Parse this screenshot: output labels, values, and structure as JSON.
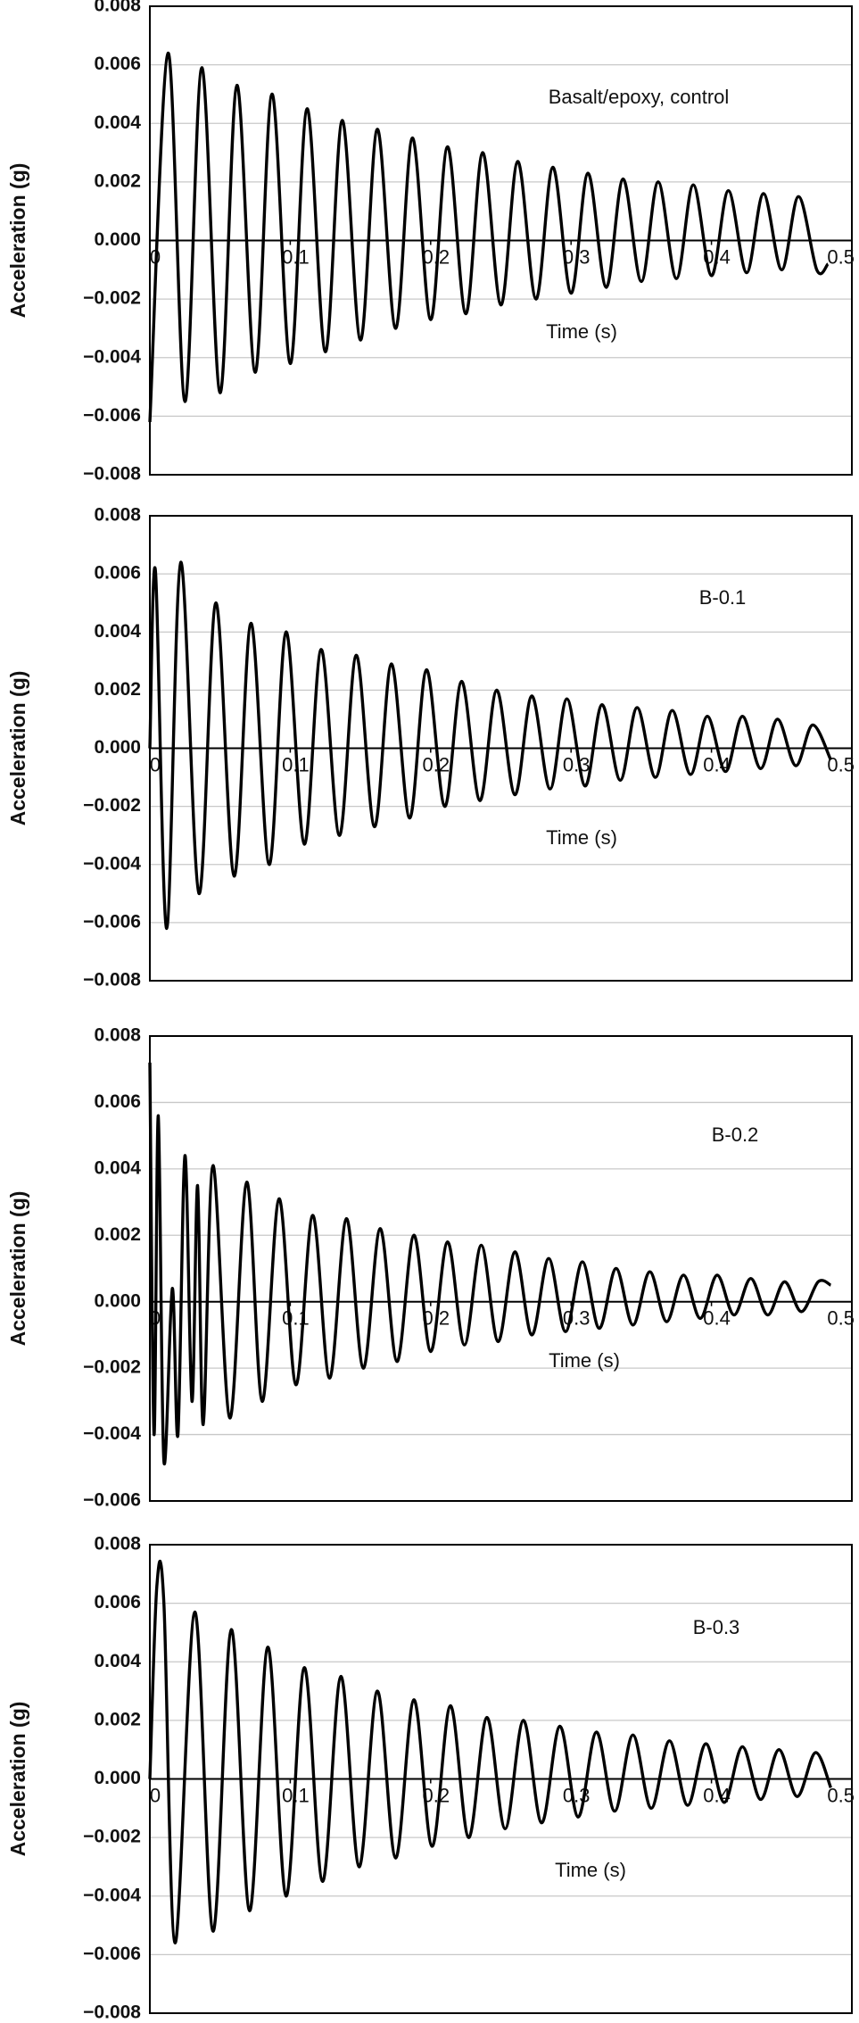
{
  "chart_data": [
    {
      "type": "line",
      "annotation": "Basalt/epoxy, control",
      "x_label": "Time (s)",
      "y_label": "Acceleration (g)",
      "color": "#000000",
      "grid": true,
      "xlim": [
        0,
        0.5
      ],
      "ylim": [
        -0.008,
        0.008
      ],
      "xticks": [
        0,
        0.1,
        0.2,
        0.3,
        0.4,
        0.5
      ],
      "yticks": [
        {
          "value": -0.008,
          "label": "−0.008"
        },
        {
          "value": -0.006,
          "label": "−0.006"
        },
        {
          "value": -0.004,
          "label": "−0.004"
        },
        {
          "value": -0.002,
          "label": "−0.002"
        },
        {
          "value": 0,
          "label": "0.000"
        },
        0.002,
        0.004,
        0.006,
        0.008
      ],
      "x": [
        0,
        0.013,
        0.025,
        0.037,
        0.05,
        0.062,
        0.075,
        0.087,
        0.1,
        0.112,
        0.125,
        0.137,
        0.15,
        0.162,
        0.175,
        0.187,
        0.2,
        0.212,
        0.225,
        0.237,
        0.25,
        0.262,
        0.275,
        0.287,
        0.3,
        0.312,
        0.325,
        0.337,
        0.35,
        0.362,
        0.375,
        0.387,
        0.4,
        0.412,
        0.425,
        0.437,
        0.45,
        0.462,
        0.475,
        0.483
      ],
      "values": [
        -0.0062,
        0.0064,
        -0.0055,
        0.0059,
        -0.0052,
        0.0053,
        -0.0045,
        0.005,
        -0.0042,
        0.0045,
        -0.0038,
        0.0041,
        -0.0034,
        0.0038,
        -0.003,
        0.0035,
        -0.0027,
        0.0032,
        -0.0025,
        0.003,
        -0.0022,
        0.0027,
        -0.002,
        0.0025,
        -0.0018,
        0.0023,
        -0.0016,
        0.0021,
        -0.0014,
        0.002,
        -0.0013,
        0.0019,
        -0.0012,
        0.0017,
        -0.0011,
        0.0016,
        -0.001,
        0.0015,
        -0.001,
        -0.0008
      ]
    },
    {
      "type": "line",
      "annotation": "B-0.1",
      "x_label": "Time (s)",
      "y_label": "Acceleration (g)",
      "color": "#000000",
      "grid": true,
      "xlim": [
        0,
        0.5
      ],
      "ylim": [
        -0.008,
        0.008
      ],
      "xticks": [
        0,
        0.1,
        0.2,
        0.3,
        0.4,
        0.5
      ],
      "yticks": [
        {
          "value": -0.008,
          "label": "−0.008"
        },
        {
          "value": -0.006,
          "label": "−0.006"
        },
        {
          "value": -0.004,
          "label": "−0.004"
        },
        {
          "value": -0.002,
          "label": "−0.002"
        },
        {
          "value": 0,
          "label": "0.000"
        },
        0.002,
        0.004,
        0.006,
        0.008
      ],
      "x": [
        0,
        0.004,
        0.012,
        0.022,
        0.035,
        0.047,
        0.06,
        0.072,
        0.085,
        0.097,
        0.11,
        0.122,
        0.135,
        0.147,
        0.16,
        0.172,
        0.185,
        0.197,
        0.21,
        0.222,
        0.235,
        0.247,
        0.26,
        0.272,
        0.285,
        0.297,
        0.31,
        0.322,
        0.335,
        0.347,
        0.36,
        0.372,
        0.385,
        0.397,
        0.41,
        0.422,
        0.435,
        0.447,
        0.46,
        0.472,
        0.485
      ],
      "values": [
        0,
        0.0061,
        -0.0062,
        0.0064,
        -0.005,
        0.005,
        -0.0044,
        0.0043,
        -0.004,
        0.004,
        -0.0033,
        0.0034,
        -0.003,
        0.0032,
        -0.0027,
        0.0029,
        -0.0024,
        0.0027,
        -0.002,
        0.0023,
        -0.0018,
        0.002,
        -0.0016,
        0.0018,
        -0.0014,
        0.0017,
        -0.0013,
        0.0015,
        -0.0011,
        0.0014,
        -0.001,
        0.0013,
        -0.0009,
        0.0011,
        -0.0008,
        0.0011,
        -0.0007,
        0.001,
        -0.0006,
        0.0008,
        -0.0004
      ]
    },
    {
      "type": "line",
      "annotation": "B-0.2",
      "x_label": "Time (s)",
      "y_label": "Acceleration (g)",
      "color": "#000000",
      "grid": true,
      "xlim": [
        0,
        0.5
      ],
      "ylim": [
        -0.006,
        0.008
      ],
      "xticks": [
        0,
        0.1,
        0.2,
        0.3,
        0.4,
        0.5
      ],
      "yticks": [
        {
          "value": -0.006,
          "label": "−0.006"
        },
        {
          "value": -0.004,
          "label": "−0.004"
        },
        {
          "value": -0.002,
          "label": "−0.002"
        },
        {
          "value": 0,
          "label": "0.000"
        },
        0.002,
        0.004,
        0.006,
        0.008
      ],
      "x": [
        0,
        0.003,
        0.006,
        0.01,
        0.016,
        0.02,
        0.025,
        0.03,
        0.034,
        0.038,
        0.045,
        0.057,
        0.069,
        0.08,
        0.092,
        0.104,
        0.116,
        0.128,
        0.14,
        0.152,
        0.164,
        0.176,
        0.188,
        0.2,
        0.212,
        0.224,
        0.236,
        0.248,
        0.26,
        0.272,
        0.284,
        0.296,
        0.308,
        0.32,
        0.332,
        0.344,
        0.356,
        0.368,
        0.38,
        0.392,
        0.404,
        0.416,
        0.428,
        0.44,
        0.452,
        0.464,
        0.476,
        0.485
      ],
      "values": [
        0.0072,
        -0.004,
        0.0056,
        -0.0048,
        0.0004,
        -0.004,
        0.0044,
        -0.003,
        0.0035,
        -0.0037,
        0.0041,
        -0.0035,
        0.0036,
        -0.003,
        0.0031,
        -0.0025,
        0.0026,
        -0.0023,
        0.0025,
        -0.002,
        0.0022,
        -0.0018,
        0.002,
        -0.0015,
        0.0018,
        -0.0013,
        0.0017,
        -0.0012,
        0.0015,
        -0.001,
        0.0013,
        -0.0009,
        0.0012,
        -0.0008,
        0.001,
        -0.0007,
        0.0009,
        -0.0006,
        0.0008,
        -0.0005,
        0.0008,
        -0.0004,
        0.0007,
        -0.0004,
        0.0006,
        -0.0003,
        0.0006,
        0.0005
      ]
    },
    {
      "type": "line",
      "annotation": "B-0.3",
      "x_label": "Time (s)",
      "y_label": "Acceleration (g)",
      "color": "#000000",
      "grid": true,
      "xlim": [
        0,
        0.5
      ],
      "ylim": [
        -0.008,
        0.008
      ],
      "xticks": [
        0,
        0.1,
        0.2,
        0.3,
        0.4,
        0.5
      ],
      "yticks": [
        {
          "value": -0.008,
          "label": "−0.008"
        },
        {
          "value": -0.006,
          "label": "−0.006"
        },
        {
          "value": -0.004,
          "label": "−0.004"
        },
        {
          "value": -0.002,
          "label": "−0.002"
        },
        {
          "value": 0,
          "label": "0.000"
        },
        0.002,
        0.004,
        0.006,
        0.008
      ],
      "x": [
        0,
        0.005,
        0.01,
        0.018,
        0.032,
        0.045,
        0.058,
        0.071,
        0.084,
        0.097,
        0.11,
        0.123,
        0.136,
        0.149,
        0.162,
        0.175,
        0.188,
        0.201,
        0.214,
        0.227,
        0.24,
        0.253,
        0.266,
        0.279,
        0.292,
        0.305,
        0.318,
        0.331,
        0.344,
        0.357,
        0.37,
        0.383,
        0.396,
        0.409,
        0.422,
        0.435,
        0.448,
        0.461,
        0.474,
        0.485
      ],
      "values": [
        0,
        0.0066,
        0.006,
        -0.0056,
        0.0057,
        -0.0052,
        0.0051,
        -0.0045,
        0.0045,
        -0.004,
        0.0038,
        -0.0035,
        0.0035,
        -0.003,
        0.003,
        -0.0027,
        0.0027,
        -0.0023,
        0.0025,
        -0.002,
        0.0021,
        -0.0017,
        0.002,
        -0.0015,
        0.0018,
        -0.0013,
        0.0016,
        -0.0011,
        0.0015,
        -0.001,
        0.0013,
        -0.0009,
        0.0012,
        -0.0008,
        0.0011,
        -0.0007,
        0.001,
        -0.0006,
        0.0009,
        -0.0003
      ]
    }
  ]
}
